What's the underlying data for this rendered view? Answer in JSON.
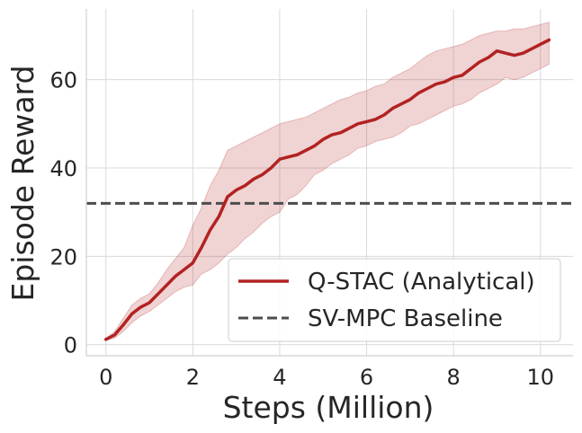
{
  "chart_data": {
    "type": "line",
    "title": "",
    "xlabel": "Steps (Million)",
    "ylabel": "Episode Reward",
    "xlim": [
      -0.45,
      10.75
    ],
    "ylim": [
      -2.5,
      76
    ],
    "xticks": [
      0,
      2,
      4,
      6,
      8,
      10
    ],
    "yticks": [
      0,
      20,
      40,
      60
    ],
    "grid": true,
    "legend_position": "lower-right",
    "series": [
      {
        "name": "Q-STAC (Analytical)",
        "color": "#b22222",
        "style": "solid",
        "x": [
          0,
          0.2,
          0.4,
          0.6,
          0.8,
          1.0,
          1.2,
          1.4,
          1.6,
          1.8,
          2.0,
          2.2,
          2.4,
          2.6,
          2.8,
          3.0,
          3.2,
          3.4,
          3.6,
          3.8,
          4.0,
          4.2,
          4.4,
          4.6,
          4.8,
          5.0,
          5.2,
          5.4,
          5.6,
          5.8,
          6.0,
          6.2,
          6.4,
          6.6,
          6.8,
          7.0,
          7.2,
          7.4,
          7.6,
          7.8,
          8.0,
          8.2,
          8.4,
          8.6,
          8.8,
          9.0,
          9.2,
          9.4,
          9.6,
          9.8,
          10.0,
          10.2
        ],
        "y": [
          1.2,
          2.2,
          4.5,
          7.0,
          8.5,
          9.5,
          11.5,
          13.5,
          15.5,
          17.0,
          18.5,
          22.0,
          26.0,
          29.0,
          33.5,
          35.0,
          36.0,
          37.5,
          38.5,
          40.0,
          42.0,
          42.5,
          43.0,
          44.0,
          45.0,
          46.5,
          47.5,
          48.0,
          49.0,
          50.0,
          50.5,
          51.0,
          52.0,
          53.5,
          54.5,
          55.5,
          57.0,
          58.0,
          59.0,
          59.5,
          60.5,
          61.0,
          62.5,
          64.0,
          65.0,
          66.5,
          66.0,
          65.5,
          66.0,
          67.0,
          68.0,
          69.0
        ],
        "band_lower": [
          1.0,
          1.5,
          3.0,
          5.0,
          6.5,
          7.5,
          9.0,
          10.5,
          12.0,
          13.0,
          13.5,
          16.0,
          17.0,
          18.5,
          20.5,
          22.0,
          24.0,
          25.5,
          27.5,
          29.0,
          30.0,
          33.0,
          34.0,
          36.0,
          38.5,
          39.5,
          41.0,
          42.0,
          43.0,
          44.5,
          45.0,
          46.0,
          46.5,
          47.0,
          48.0,
          49.5,
          50.0,
          51.0,
          52.0,
          53.0,
          54.0,
          54.5,
          55.5,
          57.0,
          58.0,
          59.0,
          60.5,
          60.0,
          60.5,
          61.5,
          62.5,
          63.5
        ],
        "band_upper": [
          1.4,
          3.0,
          6.0,
          9.0,
          10.5,
          11.5,
          14.0,
          17.0,
          19.5,
          22.0,
          27.0,
          31.0,
          36.0,
          39.5,
          44.0,
          45.0,
          46.0,
          47.0,
          48.0,
          49.0,
          50.0,
          50.5,
          51.0,
          51.5,
          52.5,
          53.5,
          54.5,
          55.5,
          56.0,
          57.0,
          57.5,
          58.5,
          59.0,
          60.5,
          61.5,
          62.5,
          64.0,
          65.5,
          66.5,
          67.0,
          67.5,
          68.0,
          69.0,
          70.0,
          70.5,
          71.0,
          71.0,
          71.5,
          71.5,
          72.0,
          72.5,
          73.0
        ]
      },
      {
        "name": "SV-MPC Baseline",
        "color": "#4d4d4d",
        "style": "dashed",
        "y_constant": 32
      }
    ]
  }
}
